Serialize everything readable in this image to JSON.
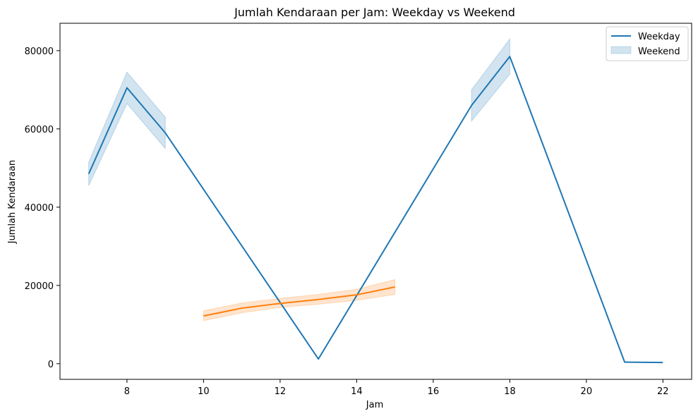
{
  "chart_data": {
    "type": "line",
    "title": "Jumlah Kendaraan per Jam: Weekday vs Weekend",
    "xlabel": "Jam",
    "ylabel": "Jumlah Kendaraan",
    "xlim": [
      6.25,
      22.75
    ],
    "ylim": [
      -4000,
      87000
    ],
    "xticks": [
      8,
      10,
      12,
      14,
      16,
      18,
      20,
      22
    ],
    "yticks": [
      0,
      20000,
      40000,
      60000,
      80000
    ],
    "grid": false,
    "legend": {
      "position": "top-right",
      "entries": [
        "Weekday",
        "Weekend"
      ]
    },
    "colors": {
      "weekday": "#1f77b4",
      "weekend": "#ff7f0e"
    },
    "series": [
      {
        "name": "Weekday",
        "x": [
          7,
          8,
          9,
          13,
          17,
          18,
          21,
          22
        ],
        "values": [
          48500,
          70500,
          59000,
          1200,
          66000,
          78500,
          400,
          300
        ]
      },
      {
        "x": [
          10,
          11,
          12,
          13,
          14,
          15
        ],
        "values": [
          12200,
          14200,
          15400,
          16400,
          17600,
          19600
        ]
      }
    ],
    "confidence_bands": [
      {
        "color": "#1f77b4",
        "x": [
          7,
          8,
          9
        ],
        "lower": [
          45500,
          66500,
          55000
        ],
        "upper": [
          51500,
          74500,
          63000
        ]
      },
      {
        "color": "#1f77b4",
        "x": [
          17,
          18
        ],
        "lower": [
          62000,
          74000
        ],
        "upper": [
          70000,
          83000
        ]
      },
      {
        "color": "#ff7f0e",
        "x": [
          10,
          11,
          12,
          13,
          14,
          15
        ],
        "lower": [
          11000,
          13000,
          14400,
          15200,
          16200,
          17700
        ],
        "upper": [
          13500,
          15500,
          16700,
          17700,
          19000,
          21500
        ]
      }
    ]
  }
}
